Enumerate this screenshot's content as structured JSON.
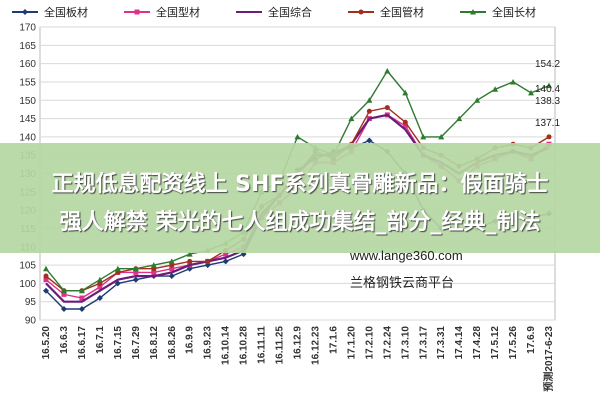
{
  "chart_data": {
    "type": "line",
    "title": "",
    "xlabel": "",
    "ylabel": "",
    "ylim": [
      90,
      170
    ],
    "yticks": [
      90,
      95,
      100,
      105,
      110,
      115,
      120,
      125,
      130,
      135,
      140,
      145,
      150,
      155,
      160,
      165,
      170
    ],
    "grid": true,
    "legend_position": "top",
    "categories": [
      "16.5.20",
      "16.6.3",
      "16.6.17",
      "16.7.1",
      "16.7.15",
      "16.7.29",
      "16.8.12",
      "16.8.26",
      "16.9.9",
      "16.9.23",
      "16.10.14",
      "16.10.28",
      "16.11.11",
      "16.11.25",
      "16.12.9",
      "16.12.23",
      "17.1.6",
      "17.1.20",
      "17.2.10",
      "17.2.24",
      "17.3.10",
      "17.3.17",
      "17.3.31",
      "17.4.14",
      "17.4.28",
      "17.5.12",
      "17.5.26",
      "17.6.9",
      "预测2017-6-23"
    ],
    "series": [
      {
        "name": "全国板材",
        "color": "#1f3b73",
        "marker": "diamond",
        "values": [
          98,
          93,
          93,
          96,
          100,
          101,
          102,
          102,
          104,
          105,
          106,
          108,
          118,
          124,
          131,
          134,
          136,
          137,
          139,
          136,
          130,
          120,
          115,
          115,
          115,
          117,
          117,
          118,
          119
        ]
      },
      {
        "name": "全国型材",
        "color": "#e0308c",
        "marker": "square",
        "values": [
          101,
          97,
          96,
          99,
          103,
          103,
          103,
          104,
          105,
          106,
          108,
          110,
          118,
          122,
          126,
          133,
          133,
          136,
          145,
          146,
          143,
          135,
          132,
          128,
          132,
          134,
          136,
          134,
          138
        ]
      },
      {
        "name": "全国综合",
        "color": "#6a1c7a",
        "marker": "none",
        "values": [
          100,
          95,
          95,
          98,
          101,
          102,
          102,
          103,
          105,
          106,
          107,
          109,
          119,
          124,
          130,
          135,
          135,
          138,
          145,
          146,
          142,
          135,
          133,
          130,
          133,
          135,
          136,
          135,
          137
        ]
      },
      {
        "name": "全国管材",
        "color": "#a0301c",
        "marker": "circle",
        "values": [
          102,
          98,
          98,
          100,
          103,
          104,
          104,
          105,
          106,
          106,
          109,
          112,
          121,
          124,
          130,
          136,
          134,
          138,
          147,
          148,
          144,
          137,
          135,
          132,
          134,
          137,
          138,
          137,
          140
        ]
      },
      {
        "name": "全国长材",
        "color": "#2f7a2f",
        "marker": "triangle",
        "values": [
          104,
          98,
          98,
          101,
          104,
          104,
          105,
          106,
          108,
          109,
          111,
          114,
          125,
          128,
          140,
          137,
          135,
          145,
          150,
          158,
          152,
          140,
          140,
          145,
          150,
          153,
          155,
          152,
          154
        ]
      }
    ],
    "end_labels": [
      "154.2",
      "140.4",
      "138.3",
      "137.1"
    ]
  },
  "banner": {
    "line1": "正规低息配资线上 SHF系列真骨雕新品：假面骑士",
    "line2": "强人解禁 荣光的七人组成功集结_部分_经典_制法"
  },
  "watermark": {
    "url": "www.lange360.com",
    "platform": "兰格钢铁云商平台"
  }
}
